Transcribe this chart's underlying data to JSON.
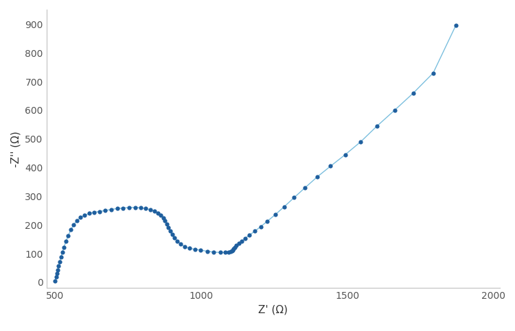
{
  "title": "",
  "xlabel": "Z' (Ω)",
  "ylabel": "-Z'' (Ω)",
  "xlim": [
    470,
    2020
  ],
  "ylim": [
    -20,
    950
  ],
  "xticks": [
    500,
    1000,
    1500,
    2000
  ],
  "yticks": [
    0,
    100,
    200,
    300,
    400,
    500,
    600,
    700,
    800,
    900
  ],
  "line_color": "#7bbfde",
  "marker_color": "#1f5f9e",
  "marker_size": 4.5,
  "line_width": 1.0,
  "background_color": "#ffffff",
  "x_data": [
    500,
    503,
    506,
    509,
    512,
    516,
    520,
    525,
    530,
    537,
    545,
    554,
    563,
    574,
    587,
    601,
    617,
    634,
    652,
    671,
    691,
    712,
    733,
    754,
    774,
    793,
    810,
    826,
    840,
    852,
    862,
    870,
    876,
    882,
    887,
    893,
    900,
    908,
    918,
    930,
    944,
    960,
    978,
    998,
    1020,
    1043,
    1065,
    1082,
    1093,
    1100,
    1105,
    1108,
    1111,
    1115,
    1120,
    1128,
    1138,
    1150,
    1165,
    1183,
    1203,
    1226,
    1253,
    1283,
    1317,
    1355,
    1397,
    1442,
    1492,
    1545,
    1601,
    1661,
    1725,
    1793,
    1870
  ],
  "y_data": [
    5,
    18,
    30,
    43,
    57,
    72,
    88,
    105,
    122,
    142,
    163,
    183,
    200,
    214,
    226,
    234,
    240,
    244,
    247,
    250,
    254,
    257,
    259,
    261,
    261,
    260,
    257,
    253,
    248,
    241,
    233,
    224,
    214,
    203,
    192,
    180,
    167,
    155,
    143,
    133,
    123,
    118,
    115,
    112,
    108,
    105,
    104,
    104,
    105,
    107,
    110,
    113,
    117,
    122,
    128,
    135,
    143,
    153,
    165,
    178,
    194,
    213,
    236,
    263,
    295,
    330,
    368,
    405,
    445,
    490,
    545,
    600,
    660,
    730,
    895
  ]
}
